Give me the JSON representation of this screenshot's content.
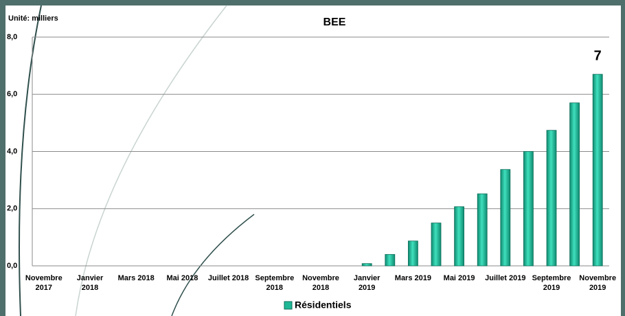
{
  "chart_data": {
    "type": "bar",
    "title": "BEE",
    "subtitle": "Unité: milliers",
    "categories": [
      "Novembre 2017",
      null,
      "Janvier 2018",
      null,
      "Mars 2018",
      null,
      "Mai 2018",
      null,
      "Juillet 2018",
      null,
      "Septembre 2018",
      null,
      "Novembre 2018",
      null,
      "Janvier 2019",
      null,
      "Mars 2019",
      null,
      "Mai 2019",
      null,
      "Juillet 2019",
      null,
      "Septembre 2019",
      null,
      "Novembre 2019"
    ],
    "series": [
      {
        "name": "Résidentiels",
        "color": "#1fb896",
        "values": [
          0,
          0,
          0,
          0,
          0,
          0,
          0,
          0,
          0,
          0,
          0,
          0,
          0,
          0,
          0.08,
          0.4,
          0.87,
          1.5,
          2.07,
          2.52,
          3.37,
          4.0,
          4.74,
          5.7,
          6.7
        ],
        "value_labels": [
          null,
          null,
          null,
          null,
          null,
          null,
          null,
          null,
          null,
          null,
          null,
          null,
          null,
          null,
          null,
          null,
          null,
          null,
          null,
          null,
          null,
          null,
          null,
          null,
          "7"
        ]
      }
    ],
    "ylim": [
      0,
      8
    ],
    "yticks": [
      {
        "value": 0,
        "label": "0,0"
      },
      {
        "value": 2,
        "label": "2,0"
      },
      {
        "value": 4,
        "label": "4,0"
      },
      {
        "value": 6,
        "label": "6,0"
      },
      {
        "value": 8,
        "label": "8,0"
      }
    ],
    "grid": true
  }
}
